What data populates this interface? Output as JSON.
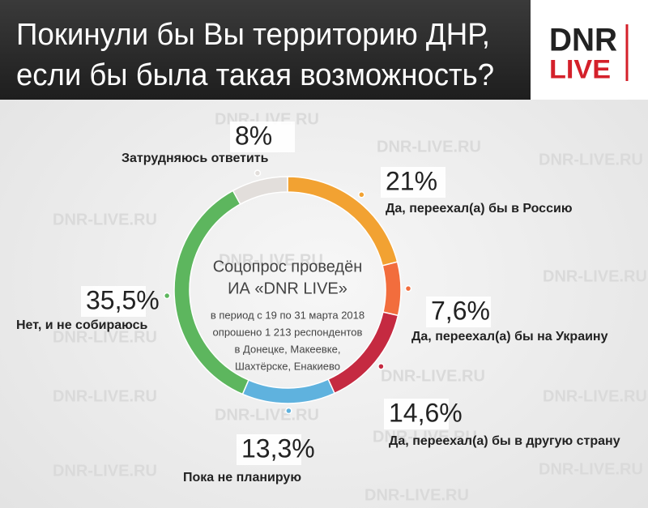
{
  "header": {
    "title_lines": [
      "Покинули бы Вы территорию ДНР,",
      "если бы была такая возможность?"
    ],
    "logo": {
      "top": "DNR",
      "bottom": "LIVE"
    }
  },
  "watermark": "DNR-LIVE.RU",
  "chart_data": {
    "type": "pie",
    "donut": true,
    "categories": [
      "Да, переехал(а) бы в Россию",
      "Да, переехал(а) бы на Украину",
      "Да, переехал(а) бы в другую страну",
      "Пока не планирую",
      "Нет, и не собираюсь",
      "Затрудняюсь ответить"
    ],
    "values": [
      21,
      7.6,
      14.6,
      13.3,
      35.5,
      8
    ],
    "value_labels": [
      "21%",
      "7,6%",
      "14,6%",
      "13,3%",
      "35,5%",
      "8%"
    ],
    "colors": [
      "#f2a232",
      "#f26d3d",
      "#c52a41",
      "#5fb2de",
      "#5db65e",
      "#e2dedb"
    ],
    "center_text": [
      "Соцопрос проведён",
      "ИА «DNR LIVE»",
      "в период с 19 по 31 марта 2018",
      "опрошено 1 213 респондентов",
      "в Донецке, Макеевке,",
      "Шахтёрске, Енакиево"
    ]
  }
}
